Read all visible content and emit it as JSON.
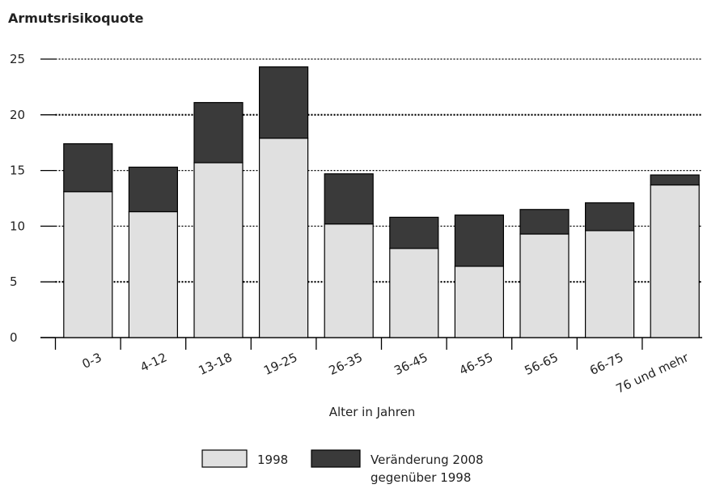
{
  "chart_data": {
    "type": "stacked_bar",
    "title": "Armutsrisikoquote",
    "x_label": "Alter in Jahren",
    "categories": [
      "0-3",
      "4-12",
      "13-18",
      "19-25",
      "26-35",
      "36-45",
      "46-55",
      "56-65",
      "66-75",
      "76 und mehr"
    ],
    "series": [
      {
        "name": "1998",
        "color": "#e0e0e0",
        "values": [
          13.1,
          11.3,
          15.7,
          17.9,
          10.2,
          8.0,
          6.4,
          9.3,
          9.6,
          13.7
        ]
      },
      {
        "name": "Veränderung 2008 gegenüber 1998",
        "color": "#3a3a3a",
        "values": [
          4.3,
          4.0,
          5.4,
          6.4,
          4.5,
          2.8,
          4.6,
          2.2,
          2.5,
          0.9
        ]
      }
    ],
    "ylim": [
      0,
      25
    ],
    "yticks": [
      0,
      5,
      10,
      15,
      20,
      25
    ],
    "grid": true
  }
}
